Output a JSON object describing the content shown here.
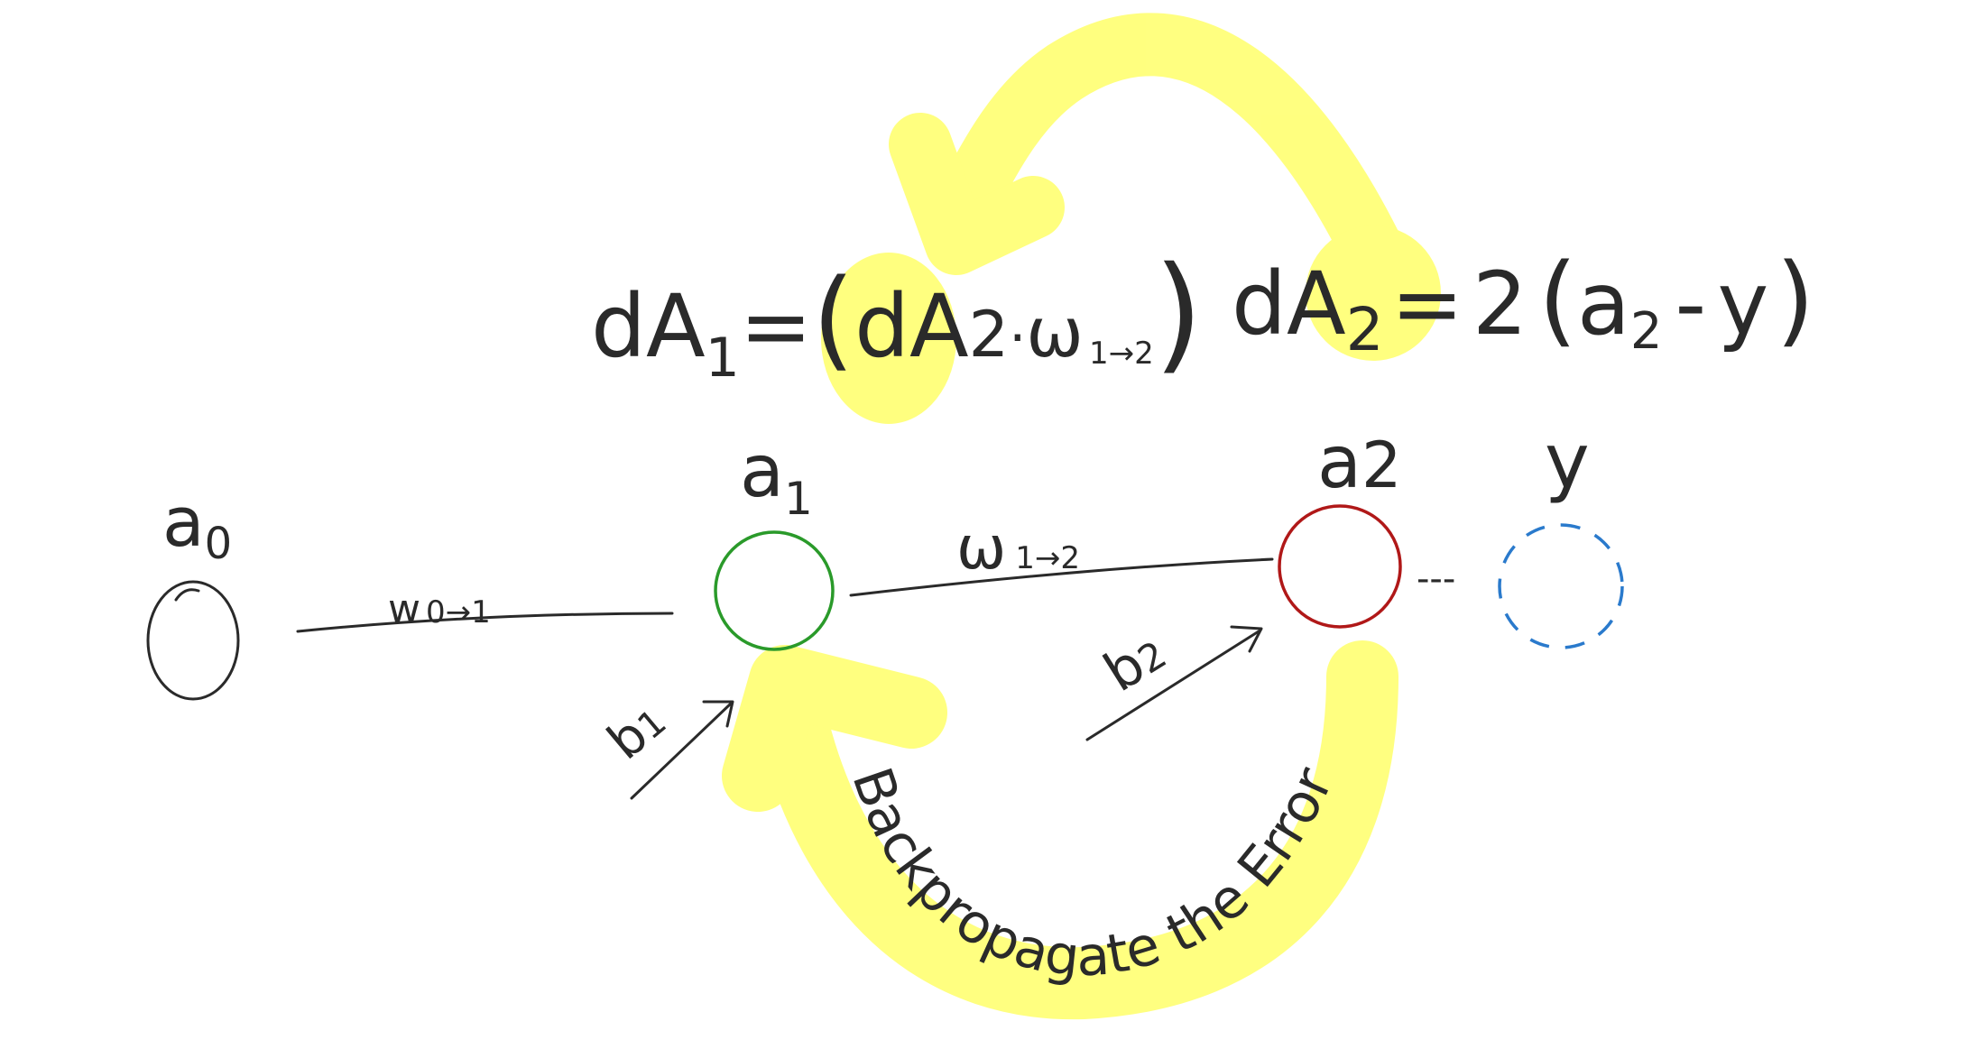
{
  "colors": {
    "ink": "#2a2a2a",
    "highlight": "#ffff66",
    "node_a1": "#2a9a2a",
    "node_a2": "#b01818",
    "node_y": "#2a7acc"
  },
  "nodes": {
    "a0": {
      "base": "a",
      "sub": "0"
    },
    "a1": {
      "base": "a",
      "sub": "1"
    },
    "a2": {
      "base": "a",
      "sub": "2"
    },
    "y": {
      "label": "y"
    }
  },
  "edges": {
    "w01": {
      "base": "w",
      "sub": "0→1"
    },
    "w12": {
      "base": "ω",
      "sub": "1→2"
    },
    "a2_to_y": {
      "label": "---"
    }
  },
  "biases": {
    "b1": {
      "base": "b",
      "sub": "1"
    },
    "b2": {
      "base": "b",
      "sub": "2"
    }
  },
  "equations": {
    "dA1": {
      "lhs_base": "dA",
      "lhs_sub": "1",
      "eq": "=",
      "open": "(",
      "term_base": "dA",
      "term_sub": "2",
      "dot": "·",
      "w_base": "ω",
      "w_sub": "1→2",
      "close": ")"
    },
    "dA2": {
      "lhs_base": "dA",
      "lhs_sub": "2",
      "eq": "=",
      "coef": "2",
      "open": "(",
      "a_base": "a",
      "a_sub": "2",
      "minus": "-",
      "y": "y",
      "close": ")"
    }
  },
  "annotation": {
    "text": "Backpropagate the Error"
  }
}
